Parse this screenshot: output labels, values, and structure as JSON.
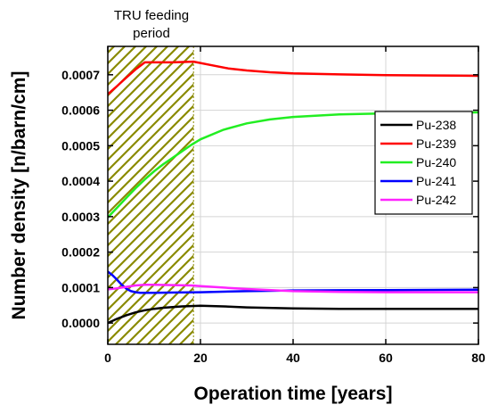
{
  "chart_data": {
    "type": "line",
    "title": "",
    "xlabel": "Operation time [years]",
    "ylabel": "Number density [n/barn/cm]",
    "xlim": [
      0,
      80
    ],
    "ylim": [
      -6e-05,
      0.00078
    ],
    "xticks": [
      "0",
      "20",
      "40",
      "60",
      "80"
    ],
    "yticks": [
      "0.0000",
      "0.0001",
      "0.0002",
      "0.0003",
      "0.0004",
      "0.0005",
      "0.0006",
      "0.0007"
    ],
    "grid": true,
    "legend_position": "right-middle",
    "annotation": {
      "label_line1": "TRU feeding",
      "label_line2": "period",
      "x_range": [
        0,
        18.5
      ],
      "pattern": "hatched",
      "pattern_color": "#8a8a00"
    },
    "series": [
      {
        "name": "Pu-238",
        "color": "#000000",
        "x": [
          0,
          2,
          4,
          6,
          8,
          10,
          12,
          14,
          16,
          18,
          20,
          25,
          30,
          40,
          50,
          60,
          70,
          80
        ],
        "y": [
          0.0,
          1.2e-05,
          2.2e-05,
          3e-05,
          3.6e-05,
          4e-05,
          4.3e-05,
          4.5e-05,
          4.7e-05,
          4.8e-05,
          4.9e-05,
          4.7e-05,
          4.4e-05,
          4.1e-05,
          4e-05,
          4e-05,
          4e-05,
          4e-05
        ]
      },
      {
        "name": "Pu-239",
        "color": "#ff0000",
        "x": [
          0,
          2,
          4,
          6,
          8,
          10,
          14,
          18.5,
          22,
          26,
          30,
          35,
          40,
          50,
          60,
          70,
          80
        ],
        "y": [
          0.000645,
          0.000668,
          0.000692,
          0.000715,
          0.000735,
          0.000735,
          0.000735,
          0.000737,
          0.000728,
          0.000718,
          0.000712,
          0.000707,
          0.000704,
          0.000701,
          0.000699,
          0.000698,
          0.000697
        ]
      },
      {
        "name": "Pu-240",
        "color": "#22ee22",
        "x": [
          0,
          2,
          4,
          6,
          8,
          10,
          12,
          14,
          16,
          18,
          20,
          25,
          30,
          35,
          40,
          50,
          60,
          70,
          80
        ],
        "y": [
          0.000298,
          0.000325,
          0.000353,
          0.00038,
          0.000405,
          0.000428,
          0.000448,
          0.000466,
          0.000484,
          0.000502,
          0.000518,
          0.000545,
          0.000563,
          0.000574,
          0.000581,
          0.000588,
          0.000591,
          0.000593,
          0.000594
        ]
      },
      {
        "name": "Pu-241",
        "color": "#0000ff",
        "x": [
          0,
          1,
          2,
          3,
          4,
          5,
          6,
          7,
          8,
          10,
          15,
          20,
          30,
          40,
          60,
          80
        ],
        "y": [
          0.000145,
          0.000135,
          0.000122,
          0.000108,
          9.7e-05,
          9e-05,
          8.7e-05,
          8.5e-05,
          8.5e-05,
          8.5e-05,
          8.6e-05,
          8.7e-05,
          9e-05,
          9.2e-05,
          9.3e-05,
          9.4e-05
        ]
      },
      {
        "name": "Pu-242",
        "color": "#ff22ff",
        "x": [
          0,
          2,
          4,
          6,
          8,
          10,
          14,
          18,
          20,
          25,
          30,
          40,
          50,
          60,
          80
        ],
        "y": [
          9.5e-05,
          9.8e-05,
          0.000102,
          0.000106,
          0.000108,
          0.000108,
          0.000107,
          0.000106,
          0.000104,
          0.0001,
          9.6e-05,
          9e-05,
          8.8e-05,
          8.7e-05,
          8.7e-05
        ]
      }
    ]
  }
}
